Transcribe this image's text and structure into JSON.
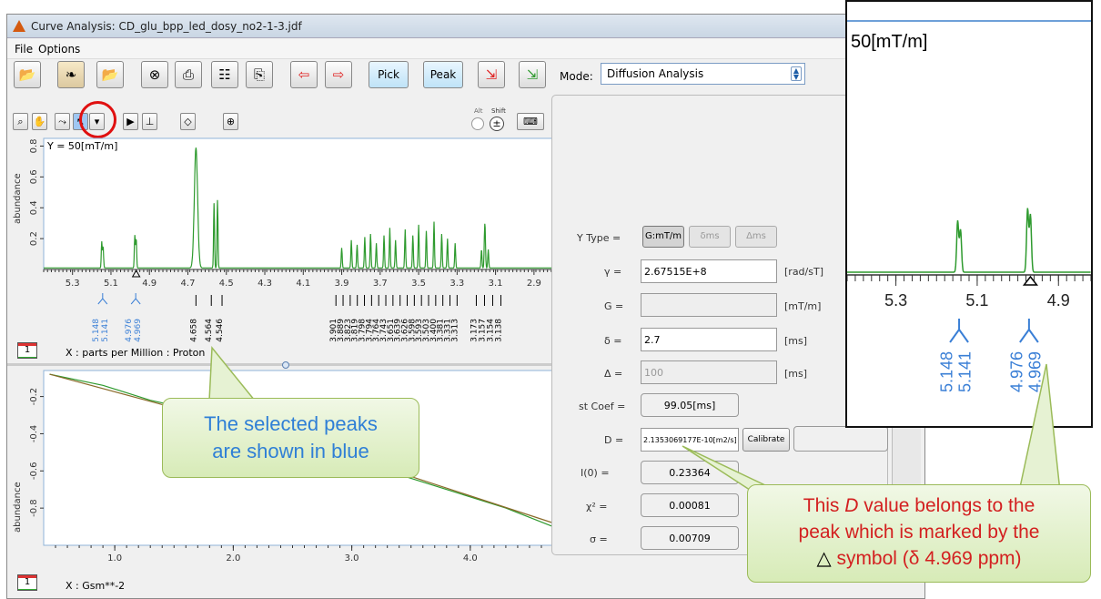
{
  "window": {
    "title": "Curve Analysis: CD_glu_bpp_led_dosy_no2-1-3.jdf"
  },
  "menu": {
    "file": "File",
    "options": "Options"
  },
  "toolbar": {
    "pick": "Pick",
    "peak": "Peak",
    "icons": [
      "open-folder",
      "peaks",
      "open-folder-2",
      "close-circle",
      "print",
      "report",
      "export",
      "arrow-left",
      "arrow-right",
      "arrow-down-right",
      "arrow-down-right-2"
    ]
  },
  "mode": {
    "label": "Mode:",
    "value": "Diffusion Analysis"
  },
  "modifiers": {
    "alt": "Alt",
    "shift": "Shift"
  },
  "top_plot": {
    "ylabel": "abundance",
    "legend": "Y = 50[mT/m]",
    "xaxis_caption": "X : parts per Million : Proton",
    "flag": "1"
  },
  "bottom_plot": {
    "ylabel": "abundance",
    "xaxis_caption": "X : Gsm**-2",
    "flag": "1"
  },
  "params": {
    "ytype_label": "Y Type =",
    "ytype_buttons": [
      "G:mT/m",
      "δms",
      "Δms"
    ],
    "gamma": {
      "label": "γ =",
      "value": "2.67515E+8",
      "unit": "[rad/sT]"
    },
    "G": {
      "label": "G =",
      "value": "",
      "unit": "[mT/m]"
    },
    "delta": {
      "label": "δ =",
      "value": "2.7",
      "unit": "[ms]"
    },
    "Delta": {
      "label": "Δ =",
      "value": "100",
      "unit": "[ms]"
    },
    "stcoef": {
      "label": "st Coef =",
      "value": "99.05[ms]"
    },
    "D": {
      "label": "D =",
      "value": "2.1353069177E-10[m2/s]",
      "button": "Calibrate"
    },
    "I0": {
      "label": "I(0) =",
      "value": "0.23364"
    },
    "chi2": {
      "label": "χ² =",
      "value": "0.00081"
    },
    "sigma": {
      "label": "σ =",
      "value": "0.00709"
    }
  },
  "inset": {
    "legend": "50[mT/m]",
    "ticks": [
      "5.3",
      "5.1",
      "4.9"
    ],
    "peaks": [
      "5.148",
      "5.141",
      "4.976",
      "4.969"
    ]
  },
  "annotations": {
    "blue_line1": "The selected peaks",
    "blue_line2": "are shown in blue",
    "red_line1a": "This ",
    "red_line1b": "D",
    "red_line1c": " value belongs to the",
    "red_line2": "peak which is marked by the",
    "red_line3a": "△",
    "red_line3b": " symbol (δ 4.969 ppm)"
  },
  "chart_data": [
    {
      "type": "line",
      "title": "",
      "legend": "Y = 50[mT/m]",
      "xlabel": "X : parts per Million : Proton",
      "ylabel": "abundance",
      "xlim": [
        5.45,
        2.8
      ],
      "ylim": [
        0,
        0.85
      ],
      "x_ticks": [
        "5.3",
        "5.1",
        "4.9",
        "4.7",
        "4.5",
        "4.3",
        "4.1",
        "3.9",
        "3.7",
        "3.5",
        "3.3",
        "3.1",
        "2.9"
      ],
      "y_ticks": [
        "0.2",
        "0.4",
        "0.6",
        "0.8"
      ],
      "series": [
        {
          "color": "#2e9a2e",
          "peaks": [
            {
              "x": 5.148,
              "y": 0.17
            },
            {
              "x": 5.141,
              "y": 0.14
            },
            {
              "x": 4.976,
              "y": 0.21
            },
            {
              "x": 4.969,
              "y": 0.19
            },
            {
              "x": 4.658,
              "y": 0.78
            },
            {
              "x": 4.564,
              "y": 0.42
            },
            {
              "x": 4.546,
              "y": 0.44
            },
            {
              "x": 3.9,
              "y": 0.13
            },
            {
              "x": 3.85,
              "y": 0.18
            },
            {
              "x": 3.82,
              "y": 0.15
            },
            {
              "x": 3.78,
              "y": 0.2
            },
            {
              "x": 3.75,
              "y": 0.22
            },
            {
              "x": 3.72,
              "y": 0.16
            },
            {
              "x": 3.68,
              "y": 0.21
            },
            {
              "x": 3.65,
              "y": 0.26
            },
            {
              "x": 3.62,
              "y": 0.18
            },
            {
              "x": 3.57,
              "y": 0.25
            },
            {
              "x": 3.53,
              "y": 0.21
            },
            {
              "x": 3.5,
              "y": 0.28
            },
            {
              "x": 3.46,
              "y": 0.24
            },
            {
              "x": 3.42,
              "y": 0.3
            },
            {
              "x": 3.38,
              "y": 0.22
            },
            {
              "x": 3.35,
              "y": 0.19
            },
            {
              "x": 3.31,
              "y": 0.16
            },
            {
              "x": 3.173,
              "y": 0.12
            },
            {
              "x": 3.157,
              "y": 0.17
            },
            {
              "x": 3.154,
              "y": 0.18
            },
            {
              "x": 3.138,
              "y": 0.12
            }
          ]
        }
      ],
      "peak_labels_selected": [
        "5.148",
        "5.141",
        "4.976",
        "4.969"
      ],
      "peak_labels": [
        "4.658",
        "4.564",
        "4.546",
        "3.901",
        "3.889",
        "3.823",
        "3.819",
        "3.798",
        "3.794",
        "3.764",
        "3.743",
        "3.651",
        "3.639",
        "3.626",
        "3.598",
        "3.593",
        "3.503",
        "3.400",
        "3.381",
        "3.331",
        "3.313",
        "3.173",
        "3.157",
        "3.154",
        "3.138"
      ]
    },
    {
      "type": "line",
      "title": "",
      "xlabel": "X : Gsm**-2",
      "ylabel": "abundance",
      "xlim": [
        0.4,
        4.7
      ],
      "ylim": [
        -1.0,
        -0.06
      ],
      "x_ticks": [
        "1.0",
        "2.0",
        "3.0",
        "4.0"
      ],
      "y_ticks": [
        "-0.2",
        "-0.4",
        "-0.6",
        "-0.8"
      ],
      "series": [
        {
          "color": "#2e9a2e",
          "x": [
            0.45,
            0.9,
            1.3,
            1.8,
            2.3,
            2.8,
            3.3,
            3.8,
            4.3,
            4.7
          ],
          "y": [
            -0.08,
            -0.14,
            -0.22,
            -0.29,
            -0.41,
            -0.5,
            -0.6,
            -0.7,
            -0.8,
            -0.9
          ]
        },
        {
          "color": "#8a6a2a",
          "x": [
            0.45,
            1.5,
            2.5,
            3.5,
            4.7
          ],
          "y": [
            -0.08,
            -0.26,
            -0.44,
            -0.63,
            -0.88
          ]
        }
      ]
    }
  ]
}
